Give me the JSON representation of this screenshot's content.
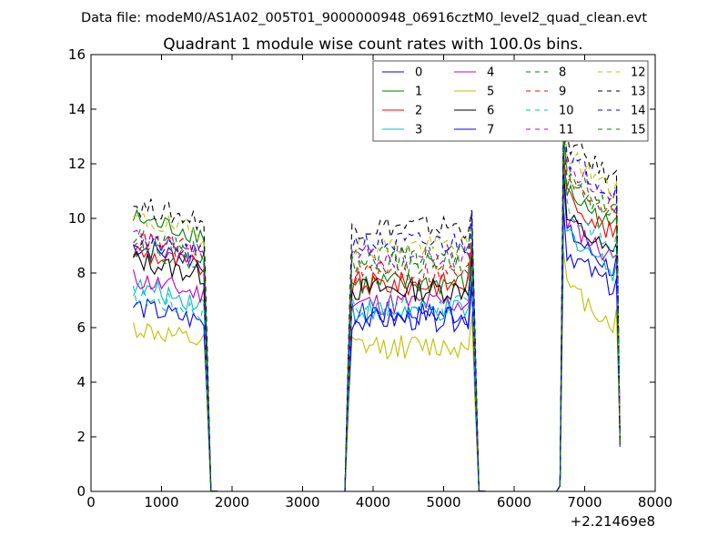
{
  "suptitle": "Data file: modeM0/AS1A02_005T01_9000000948_06916cztM0_level2_quad_clean.evt",
  "chart_data": {
    "type": "line",
    "title": "Quadrant 1 module wise count rates with 100.0s bins.",
    "xlabel": "",
    "ylabel": "",
    "xlim": [
      0,
      8000
    ],
    "ylim": [
      0,
      16
    ],
    "x_offset_label": "+2.21469e8",
    "xticks": [
      0,
      1000,
      2000,
      3000,
      4000,
      5000,
      6000,
      7000,
      8000
    ],
    "yticks": [
      0,
      2,
      4,
      6,
      8,
      10,
      12,
      14,
      16
    ],
    "legend_position": "top-right",
    "segments": [
      {
        "x_start": 600,
        "x_step": 50,
        "count": 22,
        "fall_to": 1700
      },
      {
        "x_start": 3600,
        "x_step": 50,
        "count": 37
      },
      {
        "x_start": 5400,
        "x_step": 0,
        "count": 0,
        "fall_to": 5600
      },
      {
        "x_start": 6600,
        "x_step": 50,
        "count": 18
      }
    ],
    "gap_x": [
      1700,
      1800,
      2000,
      2500,
      3000,
      3500,
      3600,
      5600,
      6000,
      6500,
      6600
    ],
    "series": [
      {
        "name": "0",
        "color": "#0000ff",
        "dash": false,
        "levels": [
          9.0,
          6.5,
          9.5
        ]
      },
      {
        "name": "1",
        "color": "#008000",
        "dash": false,
        "levels": [
          10.0,
          7.6,
          11.0
        ]
      },
      {
        "name": "2",
        "color": "#ff0000",
        "dash": false,
        "levels": [
          8.8,
          7.6,
          10.8
        ]
      },
      {
        "name": "3",
        "color": "#00bfbf",
        "dash": false,
        "levels": [
          7.5,
          6.6,
          9.5
        ]
      },
      {
        "name": "4",
        "color": "#bf00bf",
        "dash": false,
        "levels": [
          7.8,
          6.9,
          9.9
        ]
      },
      {
        "name": "5",
        "color": "#bfbf00",
        "dash": false,
        "levels": [
          6.0,
          5.3,
          7.5
        ]
      },
      {
        "name": "6",
        "color": "#000000",
        "dash": false,
        "levels": [
          8.5,
          7.4,
          10.0
        ]
      },
      {
        "name": "7",
        "color": "#0000ff",
        "dash": false,
        "levels": [
          6.8,
          6.3,
          8.8
        ]
      },
      {
        "name": "8",
        "color": "#008000",
        "dash": true,
        "levels": [
          9.3,
          8.6,
          11.6
        ]
      },
      {
        "name": "9",
        "color": "#ff0000",
        "dash": true,
        "levels": [
          9.3,
          8.0,
          11.6
        ]
      },
      {
        "name": "10",
        "color": "#00bfbf",
        "dash": true,
        "levels": [
          7.2,
          6.8,
          10.3
        ]
      },
      {
        "name": "11",
        "color": "#bf00bf",
        "dash": true,
        "levels": [
          9.3,
          8.6,
          12.0
        ]
      },
      {
        "name": "12",
        "color": "#bfbf00",
        "dash": true,
        "levels": [
          10.0,
          9.0,
          12.4
        ]
      },
      {
        "name": "13",
        "color": "#000000",
        "dash": true,
        "levels": [
          10.5,
          9.7,
          12.8
        ]
      },
      {
        "name": "14",
        "color": "#0000ff",
        "dash": true,
        "levels": [
          9.2,
          9.1,
          12.3
        ]
      },
      {
        "name": "15",
        "color": "#008000",
        "dash": true,
        "levels": [
          9.0,
          8.4,
          11.4
        ]
      }
    ]
  }
}
